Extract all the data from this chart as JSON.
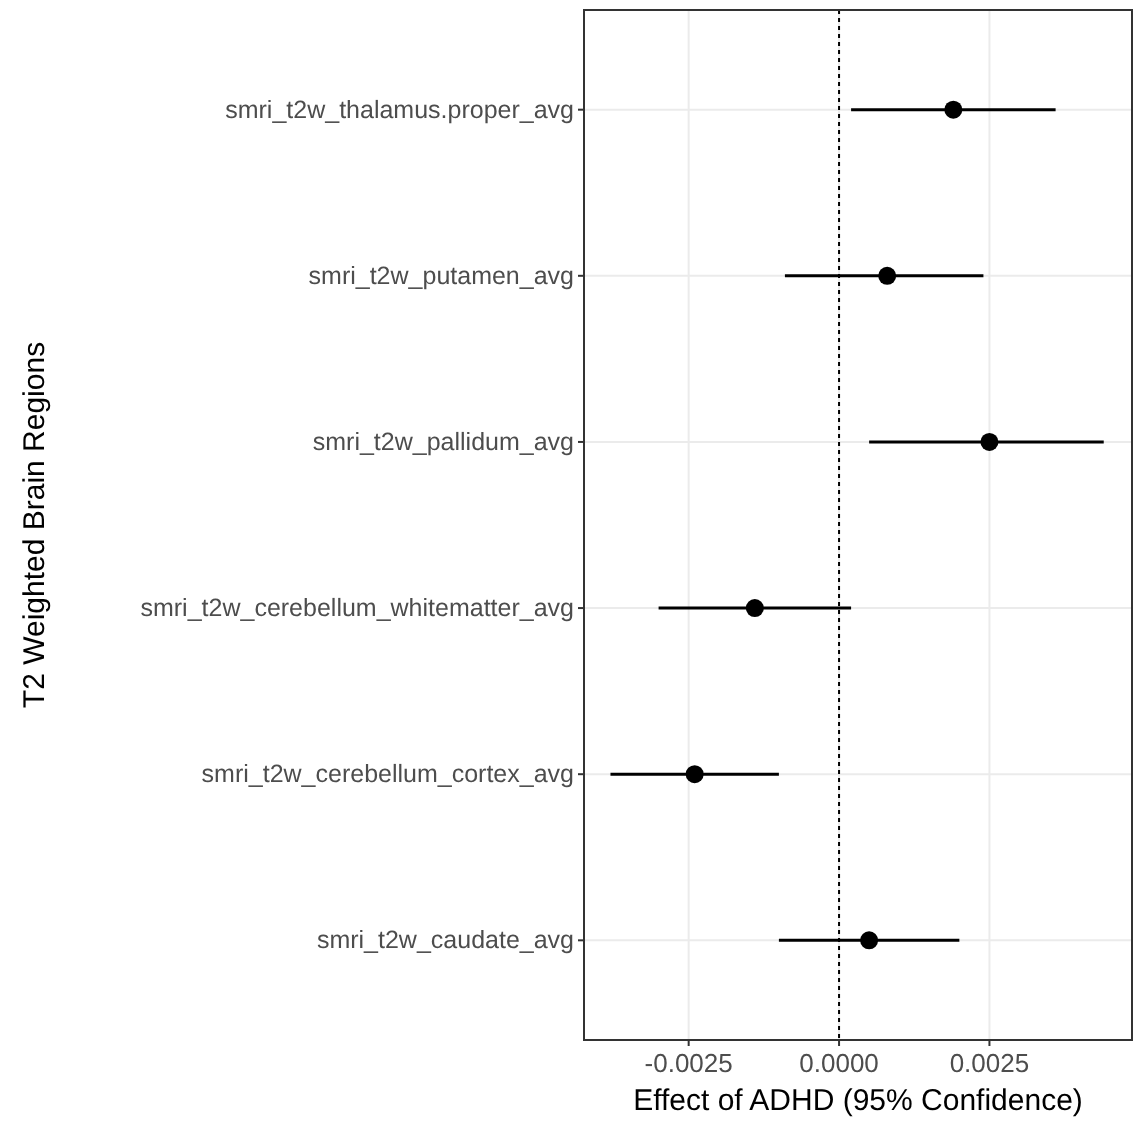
{
  "chart_data": {
    "type": "scatter",
    "orientation": "horizontal",
    "xlabel": "Effect of ADHD (95% Confidence)",
    "ylabel": "T2 Weighted Brain Regions",
    "categories": [
      "smri_t2w_thalamus.proper_avg",
      "smri_t2w_putamen_avg",
      "smri_t2w_pallidum_avg",
      "smri_t2w_cerebellum_whitematter_avg",
      "smri_t2w_cerebellum_cortex_avg",
      "smri_t2w_caudate_avg"
    ],
    "values": [
      0.0019,
      0.0008,
      0.0025,
      -0.0014,
      -0.0024,
      0.0005
    ],
    "errors": [
      [
        0.0002,
        0.0036
      ],
      [
        -0.0009,
        0.0024
      ],
      [
        0.0005,
        0.0044
      ],
      [
        -0.003,
        0.0002
      ],
      [
        -0.0038,
        -0.001
      ],
      [
        -0.001,
        0.002
      ]
    ],
    "color": "#000000",
    "marker": "circle",
    "xlim": [
      -0.00424,
      0.00487
    ],
    "xticks": [
      {
        "value": -0.0025,
        "label": "-0.0025"
      },
      {
        "value": 0,
        "label": "0.0000"
      },
      {
        "value": 0.0025,
        "label": "0.0025"
      }
    ],
    "grid": true,
    "ref_lines": [
      {
        "axis": "x",
        "value": 0,
        "line_style": "dotted",
        "color": "#000000"
      }
    ]
  }
}
